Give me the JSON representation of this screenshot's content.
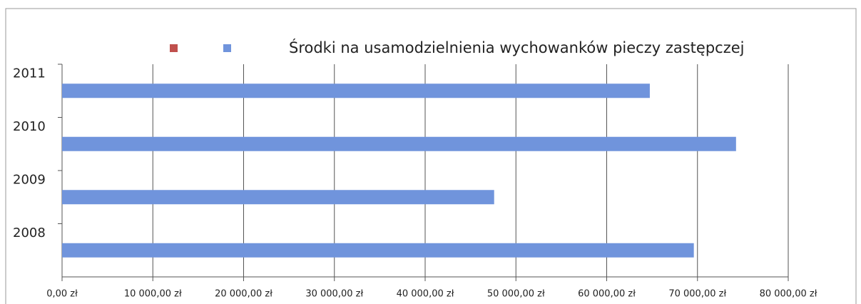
{
  "chart_data": {
    "type": "hbar",
    "categories": [
      "2008",
      "2009",
      "2010",
      "2011"
    ],
    "series": [
      {
        "name": null,
        "color": "#c0504d",
        "values": [
          null,
          null,
          null,
          null
        ]
      },
      {
        "name": "Środki na usamodzielnienia wychowanków pieczy zastępczej",
        "color": "#7094dc",
        "values": [
          69600,
          47600,
          74250,
          64750
        ]
      }
    ],
    "xlim": [
      0,
      80000
    ],
    "xticks": [
      {
        "value": 0,
        "label": "0,00 zł"
      },
      {
        "value": 10000,
        "label": "10 000,00 zł"
      },
      {
        "value": 20000,
        "label": "20 000,00 zł"
      },
      {
        "value": 30000,
        "label": "30 000,00 zł"
      },
      {
        "value": 40000,
        "label": "40 000,00 zł"
      },
      {
        "value": 50000,
        "label": "50 000,00 zł"
      },
      {
        "value": 60000,
        "label": "60 000,00 zł"
      },
      {
        "value": 70000,
        "label": "70 000,00 zł"
      },
      {
        "value": 80000,
        "label": "80 000,00 zł"
      }
    ],
    "grid": true
  }
}
